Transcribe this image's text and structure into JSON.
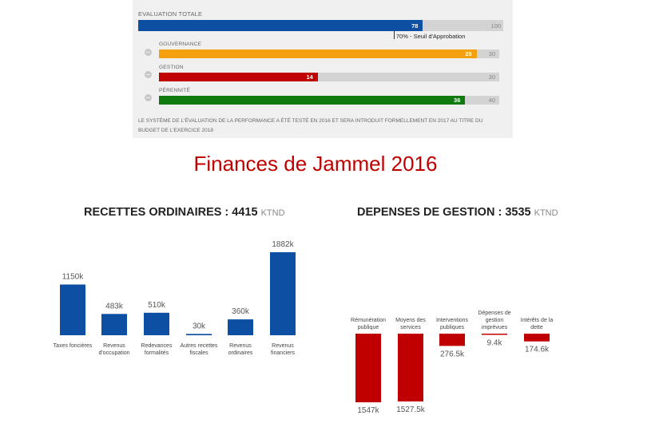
{
  "evaluation": {
    "title": "EVALUATION TOTALE",
    "total": {
      "value": 78,
      "value_label": "78",
      "max": 100,
      "max_label": "100",
      "color": "#0d4fa3"
    },
    "threshold": {
      "value": 70,
      "label": "70% - Seuil d'Approbation"
    },
    "track_color": "#d3d3d3",
    "items": [
      {
        "label": "GOUVERNANCE",
        "value": 28,
        "value_label": "28",
        "max": 30,
        "max_label": "30",
        "color": "#f5a00f"
      },
      {
        "label": "GESTION",
        "value": 14,
        "value_label": "14",
        "max": 30,
        "max_label": "30",
        "color": "#c00000"
      },
      {
        "label": "PÉRENNITÉ",
        "value": 36,
        "value_label": "36",
        "max": 40,
        "max_label": "40",
        "color": "#117a0e"
      }
    ],
    "note": "LE SYSTÈME DE L'ÉVALUATION DE LA PERFORMANCE A ÉTÉ TESTÉ EN 2016 ET SERA INTRODUIT FORMELLEMENT EN 2017 AU TITRE DU BUDGET DE L'EXERCICE 2018"
  },
  "main_title": "Finances de Jammel 2016",
  "chart_data": [
    {
      "type": "bar",
      "title": "RECETTES ORDINAIRES : 4415",
      "unit": "KTND",
      "color": "#0d4fa3",
      "categories": [
        [
          "Taxes foncières"
        ],
        [
          "Revenus",
          "d'occupation"
        ],
        [
          "Redevances",
          "formalités"
        ],
        [
          "Autres recettes",
          "fiscales"
        ],
        [
          "Revenus",
          "ordinaires"
        ],
        [
          "Revenus",
          "financiers"
        ]
      ],
      "values": [
        1150,
        483,
        510,
        30,
        360,
        1882
      ],
      "value_labels": [
        "1150k",
        "483k",
        "510k",
        "30k",
        "360k",
        "1882k"
      ]
    },
    {
      "type": "bar",
      "title": "DEPENSES DE GESTION : 3535",
      "unit": "KTND",
      "color": "#c00000",
      "categories": [
        [
          "Rémunération",
          "publique"
        ],
        [
          "Moyens des",
          "services"
        ],
        [
          "Interventions",
          "publiques"
        ],
        [
          "Dépenses de",
          "gestion",
          "imprévues"
        ],
        [
          "Intérêts de la",
          "dette"
        ]
      ],
      "values": [
        1547,
        1527.5,
        276.5,
        9.4,
        174.6
      ],
      "value_labels": [
        "1547k",
        "1527.5k",
        "276.5k",
        "9.4k",
        "174.6k"
      ]
    }
  ]
}
